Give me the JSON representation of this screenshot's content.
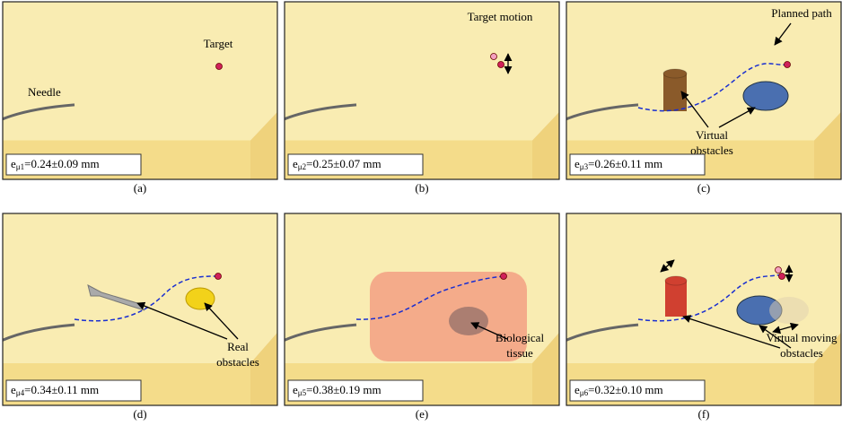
{
  "panels": [
    {
      "caption": "(a)",
      "error": {
        "symbol": "e",
        "subscript": "μ1",
        "text": "=0.24±0.09 mm"
      },
      "annotations": [
        [
          "Needle"
        ],
        [
          "Target"
        ]
      ]
    },
    {
      "caption": "(b)",
      "error": {
        "symbol": "e",
        "subscript": "μ2",
        "text": "=0.25±0.07 mm"
      },
      "annotations": [
        [
          "Target motion"
        ]
      ]
    },
    {
      "caption": "(c)",
      "error": {
        "symbol": "e",
        "subscript": "μ3",
        "text": "=0.26±0.11 mm"
      },
      "annotations": [
        [
          "Planned path"
        ],
        [
          "Virtual",
          "obstacles"
        ]
      ]
    },
    {
      "caption": "(d)",
      "error": {
        "symbol": "e",
        "subscript": "μ4",
        "text": "=0.34±0.11 mm"
      },
      "annotations": [
        [
          "Real",
          "obstacles"
        ]
      ]
    },
    {
      "caption": "(e)",
      "error": {
        "symbol": "e",
        "subscript": "μ5",
        "text": "=0.38±0.19 mm"
      },
      "annotations": [
        [
          "Biological",
          "tissue"
        ]
      ]
    },
    {
      "caption": "(f)",
      "error": {
        "symbol": "e",
        "subscript": "μ6",
        "text": "=0.32±0.10 mm"
      },
      "annotations": [
        [
          "Virtual moving",
          "obstacles"
        ]
      ]
    }
  ]
}
